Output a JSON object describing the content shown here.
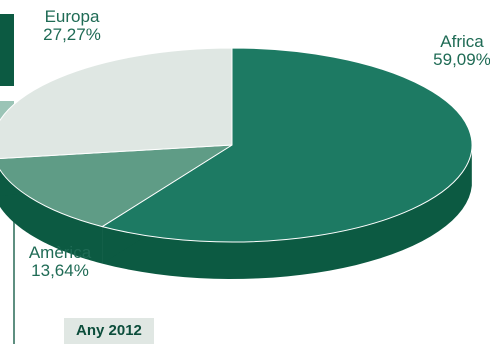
{
  "chart_data": {
    "type": "pie",
    "style": "3d-exploded",
    "slices": [
      {
        "name": "Africa",
        "label": "Africa",
        "pct_label": "59,09%",
        "value": 59.09,
        "color_top": "#1d7a63",
        "color_side": "#0c5a42"
      },
      {
        "name": "Amèrica",
        "label": "Amèrica",
        "pct_label": "13,64%",
        "value": 13.64,
        "color_top": "#5f9c86",
        "color_side": "#0c5a42"
      },
      {
        "name": "Europa",
        "label": "Europa",
        "pct_label": "27,27%",
        "value": 27.27,
        "color_top": "#dfe7e3",
        "color_side": "#0c5a42"
      }
    ],
    "footer": "Any 2012"
  }
}
